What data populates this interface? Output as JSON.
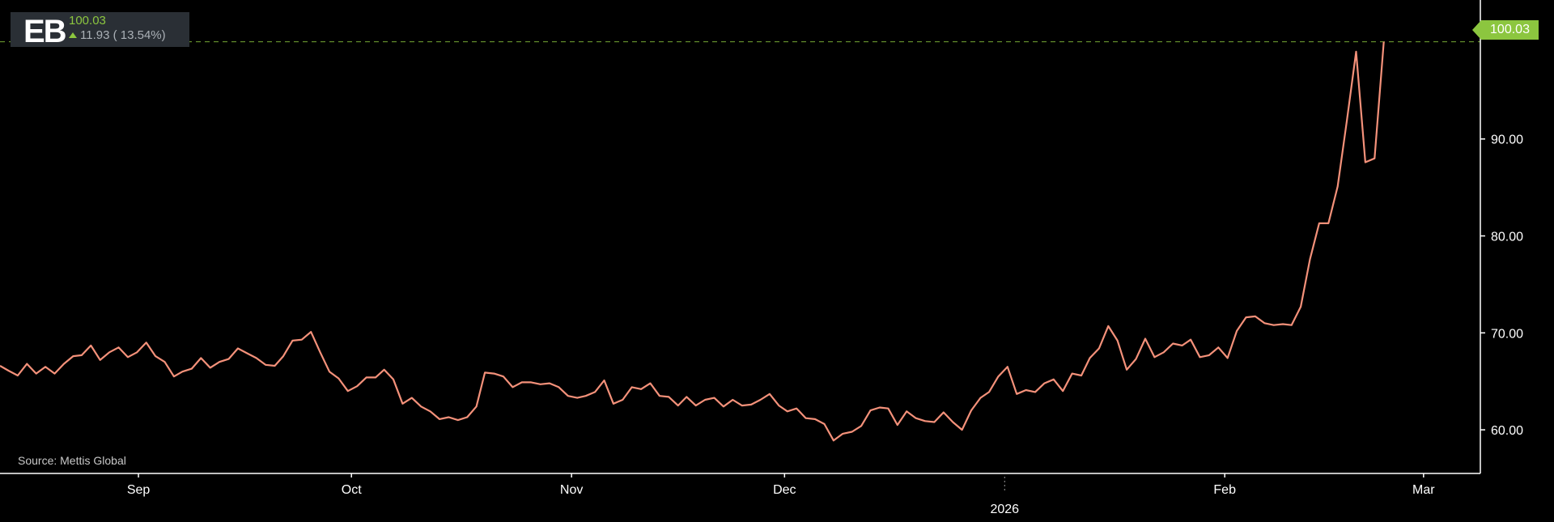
{
  "ticker": {
    "symbol": "EB",
    "price": "100.03",
    "change": "11.93 ( 13.54%)",
    "direction": "up"
  },
  "source": "Source: Mettis Global",
  "last_price_label": "100.03",
  "colors": {
    "background": "#000000",
    "line": "#f4917a",
    "up": "#8cc63f",
    "panel": "#2a2f35",
    "axis": "#ffffff"
  },
  "chart_data": {
    "type": "line",
    "title": "",
    "xlabel": "",
    "ylabel": "",
    "ylim": [
      55.5,
      103.5
    ],
    "yticks": [
      60,
      70,
      80,
      90
    ],
    "ytick_labels": [
      "60.00",
      "70.00",
      "80.00",
      "90.00"
    ],
    "xticks": [
      {
        "t": 14,
        "label": "Sep"
      },
      {
        "t": 44,
        "label": "Oct"
      },
      {
        "t": 75,
        "label": "Nov"
      },
      {
        "t": 105,
        "label": "Dec"
      },
      {
        "t": 136,
        "label": "",
        "year_label": "2026"
      },
      {
        "t": 167,
        "label": "Feb"
      },
      {
        "t": 195,
        "label": "Mar"
      }
    ],
    "x_range": [
      -5.5,
      203
    ],
    "last_value": 100.03,
    "series": [
      {
        "values": [
          [
            -5.5,
            66.6
          ],
          [
            -4.3,
            66.1
          ],
          [
            -3,
            65.6
          ],
          [
            -1.7,
            66.8
          ],
          [
            -0.4,
            65.8
          ],
          [
            0.9,
            66.5
          ],
          [
            2.2,
            65.8
          ],
          [
            3.5,
            66.8
          ],
          [
            4.8,
            67.6
          ],
          [
            6,
            67.7
          ],
          [
            7.3,
            68.7
          ],
          [
            8.6,
            67.2
          ],
          [
            9.9,
            68.0
          ],
          [
            11.2,
            68.5
          ],
          [
            12.5,
            67.5
          ],
          [
            13.8,
            68.0
          ],
          [
            15.1,
            69.0
          ],
          [
            16.4,
            67.6
          ],
          [
            17.7,
            67.0
          ],
          [
            19,
            65.5
          ],
          [
            20.2,
            66.0
          ],
          [
            21.5,
            66.3
          ],
          [
            22.8,
            67.4
          ],
          [
            24.1,
            66.4
          ],
          [
            25.4,
            67.0
          ],
          [
            26.7,
            67.3
          ],
          [
            28,
            68.4
          ],
          [
            29.3,
            67.9
          ],
          [
            30.6,
            67.4
          ],
          [
            31.9,
            66.7
          ],
          [
            33.2,
            66.6
          ],
          [
            34.4,
            67.6
          ],
          [
            35.7,
            69.2
          ],
          [
            37,
            69.3
          ],
          [
            38.3,
            70.1
          ],
          [
            39.6,
            68.0
          ],
          [
            40.9,
            66.0
          ],
          [
            42.2,
            65.3
          ],
          [
            43.5,
            64.0
          ],
          [
            44.8,
            64.5
          ],
          [
            46.1,
            65.4
          ],
          [
            47.4,
            65.4
          ],
          [
            48.6,
            66.2
          ],
          [
            49.9,
            65.2
          ],
          [
            51.2,
            62.7
          ],
          [
            52.5,
            63.3
          ],
          [
            53.8,
            62.4
          ],
          [
            55.1,
            61.9
          ],
          [
            56.4,
            61.1
          ],
          [
            57.7,
            61.3
          ],
          [
            59,
            61.0
          ],
          [
            60.3,
            61.3
          ],
          [
            61.6,
            62.4
          ],
          [
            62.8,
            65.9
          ],
          [
            64.1,
            65.8
          ],
          [
            65.4,
            65.5
          ],
          [
            66.7,
            64.4
          ],
          [
            68,
            64.9
          ],
          [
            69.3,
            64.9
          ],
          [
            70.6,
            64.7
          ],
          [
            71.9,
            64.8
          ],
          [
            73.2,
            64.4
          ],
          [
            74.5,
            63.5
          ],
          [
            75.8,
            63.3
          ],
          [
            77,
            63.5
          ],
          [
            78.3,
            63.9
          ],
          [
            79.6,
            65.1
          ],
          [
            80.9,
            62.7
          ],
          [
            82.2,
            63.1
          ],
          [
            83.5,
            64.4
          ],
          [
            84.8,
            64.2
          ],
          [
            86.1,
            64.8
          ],
          [
            87.4,
            63.5
          ],
          [
            88.7,
            63.4
          ],
          [
            90,
            62.5
          ],
          [
            91.2,
            63.4
          ],
          [
            92.5,
            62.5
          ],
          [
            93.8,
            63.1
          ],
          [
            95.1,
            63.3
          ],
          [
            96.4,
            62.4
          ],
          [
            97.7,
            63.1
          ],
          [
            99,
            62.5
          ],
          [
            100.3,
            62.6
          ],
          [
            101.6,
            63.1
          ],
          [
            102.9,
            63.7
          ],
          [
            104.2,
            62.5
          ],
          [
            105.4,
            61.9
          ],
          [
            106.7,
            62.2
          ],
          [
            108,
            61.2
          ],
          [
            109.3,
            61.1
          ],
          [
            110.6,
            60.6
          ],
          [
            111.9,
            58.9
          ],
          [
            113.2,
            59.6
          ],
          [
            114.5,
            59.8
          ],
          [
            115.8,
            60.4
          ],
          [
            117.1,
            62.0
          ],
          [
            118.4,
            62.3
          ],
          [
            119.6,
            62.2
          ],
          [
            120.9,
            60.5
          ],
          [
            122.2,
            61.9
          ],
          [
            123.5,
            61.2
          ],
          [
            124.8,
            60.9
          ],
          [
            126.1,
            60.8
          ],
          [
            127.4,
            61.8
          ],
          [
            128.7,
            60.8
          ],
          [
            130,
            60.0
          ],
          [
            131.3,
            62.0
          ],
          [
            132.6,
            63.3
          ],
          [
            133.8,
            63.9
          ],
          [
            135.1,
            65.5
          ],
          [
            136.4,
            66.5
          ],
          [
            137.7,
            63.7
          ],
          [
            139,
            64.1
          ],
          [
            140.3,
            63.9
          ],
          [
            141.6,
            64.8
          ],
          [
            142.9,
            65.2
          ],
          [
            144.2,
            64.0
          ],
          [
            145.5,
            65.8
          ],
          [
            146.8,
            65.6
          ],
          [
            148,
            67.4
          ],
          [
            149.3,
            68.4
          ],
          [
            150.6,
            70.7
          ],
          [
            151.9,
            69.2
          ],
          [
            153.2,
            66.2
          ],
          [
            154.5,
            67.3
          ],
          [
            155.8,
            69.4
          ],
          [
            157.1,
            67.5
          ],
          [
            158.4,
            68.0
          ],
          [
            159.7,
            68.9
          ],
          [
            161,
            68.7
          ],
          [
            162.2,
            69.3
          ],
          [
            163.5,
            67.5
          ],
          [
            164.8,
            67.7
          ],
          [
            166.1,
            68.5
          ],
          [
            167.4,
            67.4
          ],
          [
            168.7,
            70.2
          ],
          [
            170,
            71.6
          ],
          [
            171.3,
            71.7
          ],
          [
            172.6,
            71.0
          ],
          [
            173.9,
            70.8
          ],
          [
            175.2,
            70.9
          ],
          [
            176.4,
            70.8
          ],
          [
            177.7,
            72.7
          ],
          [
            179,
            77.6
          ],
          [
            180.3,
            81.3
          ],
          [
            181.6,
            81.3
          ],
          [
            182.9,
            85.1
          ],
          [
            184.2,
            91.9
          ],
          [
            185.5,
            99.0
          ],
          [
            186.8,
            87.6
          ],
          [
            188.1,
            88.0
          ],
          [
            189.4,
            100.03
          ]
        ]
      }
    ]
  }
}
